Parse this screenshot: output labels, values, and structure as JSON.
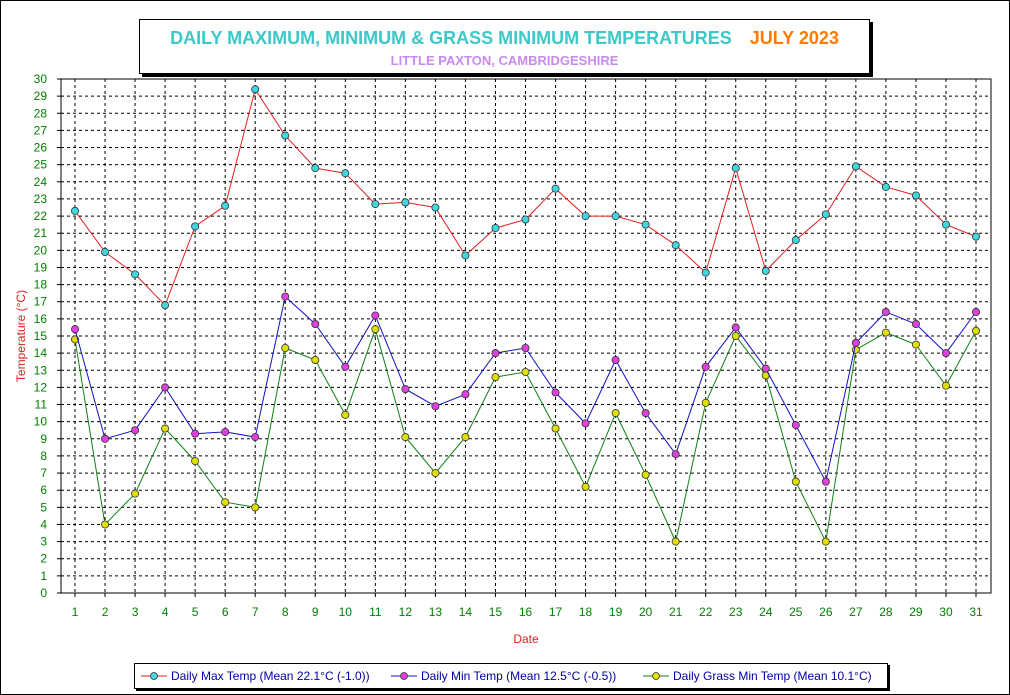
{
  "title": {
    "main": "DAILY MAXIMUM, MINIMUM & GRASS MINIMUM TEMPERATURES",
    "month": "JULY 2023",
    "subtitle": "LITTLE PAXTON, CAMBRIDGESHIRE"
  },
  "colors": {
    "title": "#3cc8c8",
    "month": "#ff7a00",
    "subtitle": "#c98af0",
    "axis_label": "#e02020",
    "tick_label": "#008000",
    "legend_text": "#0000a0",
    "max_line": "#e02020",
    "max_marker": "#40d8e0",
    "min_line": "#1010c0",
    "min_marker": "#e040e0",
    "grass_line": "#108010",
    "grass_marker": "#e0e000"
  },
  "chart_data": {
    "type": "line",
    "xlabel": "Date",
    "ylabel": "Temperature (°C)",
    "ylim": [
      0,
      30
    ],
    "y_ticks": [
      "0",
      "1",
      "2",
      "3",
      "4",
      "5",
      "6",
      "7",
      "8",
      "9",
      "10",
      "11",
      "12",
      "13",
      "14",
      "15",
      "16",
      "17",
      "18",
      "19",
      "20",
      "21",
      "22",
      "23",
      "24",
      "25",
      "26",
      "27",
      "28",
      "29",
      "30"
    ],
    "categories": [
      "1",
      "2",
      "3",
      "4",
      "5",
      "6",
      "7",
      "8",
      "9",
      "10",
      "11",
      "12",
      "13",
      "14",
      "15",
      "16",
      "17",
      "18",
      "19",
      "20",
      "21",
      "22",
      "23",
      "24",
      "25",
      "26",
      "27",
      "28",
      "29",
      "30",
      "31"
    ],
    "grid": "dashed",
    "legend_position": "bottom",
    "series": [
      {
        "name": "Daily Max Temp (Mean 22.1°C (-1.0))",
        "line_color": "#e02020",
        "marker_color": "#40d8e0",
        "values": [
          22.3,
          19.9,
          18.6,
          16.8,
          21.4,
          22.6,
          29.4,
          26.7,
          24.8,
          24.5,
          22.7,
          22.8,
          22.5,
          19.7,
          21.3,
          21.8,
          23.6,
          22.0,
          22.0,
          21.5,
          20.3,
          18.7,
          24.8,
          18.8,
          20.6,
          22.1,
          24.9,
          23.7,
          23.2,
          21.5,
          20.8
        ]
      },
      {
        "name": "Daily Min Temp (Mean 12.5°C (-0.5))",
        "line_color": "#1010c0",
        "marker_color": "#e040e0",
        "values": [
          15.4,
          9.0,
          9.5,
          12.0,
          9.3,
          9.4,
          9.1,
          17.3,
          15.7,
          13.2,
          16.2,
          11.9,
          10.9,
          11.6,
          14.0,
          14.3,
          11.7,
          9.9,
          13.6,
          10.5,
          8.1,
          13.2,
          15.5,
          13.1,
          9.8,
          6.5,
          14.6,
          16.4,
          15.7,
          14.0,
          16.4
        ]
      },
      {
        "name": "Daily Grass Min Temp (Mean 10.1°C)",
        "line_color": "#108010",
        "marker_color": "#e0e000",
        "values": [
          14.8,
          4.0,
          5.8,
          9.6,
          7.7,
          5.3,
          5.0,
          14.3,
          13.6,
          10.4,
          15.4,
          9.1,
          7.0,
          9.1,
          12.6,
          12.9,
          9.6,
          6.2,
          10.5,
          6.9,
          3.0,
          11.1,
          15.0,
          12.7,
          6.5,
          3.0,
          14.2,
          15.2,
          14.5,
          12.1,
          15.3
        ]
      }
    ]
  }
}
